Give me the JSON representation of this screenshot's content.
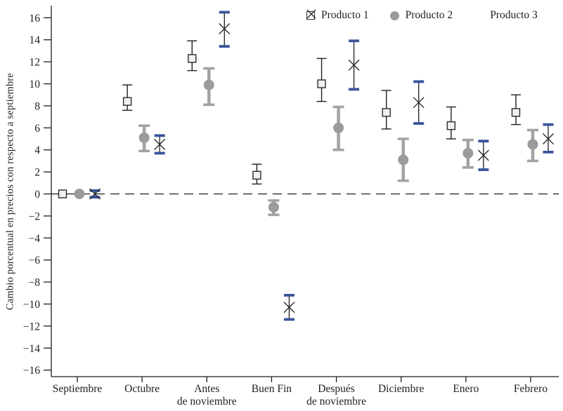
{
  "chart_data": {
    "type": "scatter",
    "title": "",
    "xlabel": "",
    "ylabel": "Cambio porcentual en precios con respecto a septiembre",
    "ylim": [
      -17,
      17
    ],
    "ytick_max": 16,
    "ytick_min": -16,
    "ytick_step": 2,
    "grid": "off",
    "zero_line": "dashed",
    "legend_position": "top-right-inside",
    "categories": [
      [
        "Septiembre"
      ],
      [
        "Octubre"
      ],
      [
        "Antes",
        "de noviembre"
      ],
      [
        "Buen Fin"
      ],
      [
        "Después",
        "de noviembre"
      ],
      [
        "Diciembre"
      ],
      [
        "Enero"
      ],
      [
        "Febrero"
      ]
    ],
    "series": [
      {
        "name": "Producto 1",
        "marker": "open-square",
        "color": "#2b2b2b",
        "fill": "#f2f1ee",
        "bar_color": "#1f1f1f",
        "bar_width": 1.4,
        "cap_color": "#1f1f1f",
        "cap_width": 1.4,
        "cap_halfwidth": 7,
        "points": [
          {
            "y": 0,
            "lo": 0,
            "hi": 0
          },
          {
            "y": 8.4,
            "lo": 7.6,
            "hi": 9.9
          },
          {
            "y": 12.3,
            "lo": 11.2,
            "hi": 13.9
          },
          {
            "y": 1.7,
            "lo": 0.9,
            "hi": 2.7
          },
          {
            "y": 10.0,
            "lo": 8.4,
            "hi": 12.3
          },
          {
            "y": 7.4,
            "lo": 5.9,
            "hi": 9.4
          },
          {
            "y": 6.2,
            "lo": 5.0,
            "hi": 7.9
          },
          {
            "y": 7.4,
            "lo": 6.3,
            "hi": 9.0
          }
        ]
      },
      {
        "name": "Producto 2",
        "marker": "filled-circle",
        "color": "#9b9b9b",
        "fill": "#9b9b9b",
        "bar_color": "#a3a3a3",
        "bar_width": 4.5,
        "cap_color": "#a3a3a3",
        "cap_width": 3.6,
        "cap_halfwidth": 8,
        "points": [
          {
            "y": 0,
            "lo": 0,
            "hi": 0
          },
          {
            "y": 5.1,
            "lo": 3.9,
            "hi": 6.2
          },
          {
            "y": 9.9,
            "lo": 8.1,
            "hi": 11.4
          },
          {
            "y": -1.2,
            "lo": -1.9,
            "hi": -0.6
          },
          {
            "y": 6.0,
            "lo": 4.0,
            "hi": 7.9
          },
          {
            "y": 3.1,
            "lo": 1.2,
            "hi": 5.0
          },
          {
            "y": 3.7,
            "lo": 2.4,
            "hi": 4.9
          },
          {
            "y": 4.5,
            "lo": 3.0,
            "hi": 5.8
          }
        ]
      },
      {
        "name": "Producto 3",
        "marker": "x-cross",
        "color": "#2b2b2b",
        "fill": "none",
        "bar_color": "#1f1f1f",
        "bar_width": 1.3,
        "cap_color": "#3a539b",
        "cap_width": 3.8,
        "cap_halfwidth": 7.5,
        "points": [
          {
            "y": 0,
            "lo": -0.3,
            "hi": 0.3
          },
          {
            "y": 4.5,
            "lo": 3.7,
            "hi": 5.3
          },
          {
            "y": 15.0,
            "lo": 13.4,
            "hi": 16.5
          },
          {
            "y": -10.3,
            "lo": -11.4,
            "hi": -9.2
          },
          {
            "y": 11.7,
            "lo": 9.5,
            "hi": 13.9
          },
          {
            "y": 8.3,
            "lo": 6.4,
            "hi": 10.2
          },
          {
            "y": 3.5,
            "lo": 2.2,
            "hi": 4.8
          },
          {
            "y": 5.0,
            "lo": 3.8,
            "hi": 6.3
          }
        ]
      }
    ]
  }
}
